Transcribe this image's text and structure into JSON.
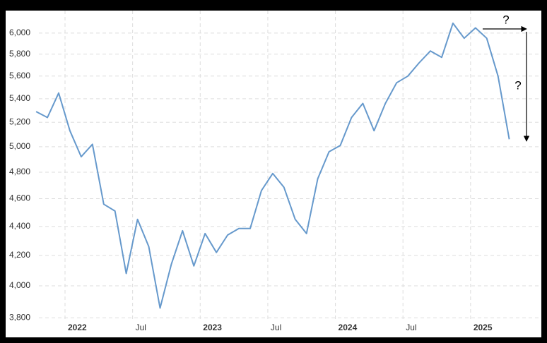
{
  "chart_data": {
    "type": "line",
    "x": [
      "2021-11",
      "2021-12",
      "2022-01",
      "2022-02",
      "2022-03",
      "2022-04",
      "2022-05",
      "2022-06",
      "2022-07",
      "2022-08",
      "2022-09",
      "2022-10",
      "2022-11",
      "2022-12",
      "2023-01",
      "2023-02",
      "2023-03",
      "2023-04",
      "2023-05",
      "2023-06",
      "2023-07",
      "2023-08",
      "2023-09",
      "2023-10",
      "2023-11",
      "2023-12",
      "2024-01",
      "2024-02",
      "2024-03",
      "2024-04",
      "2024-05",
      "2024-06",
      "2024-07",
      "2024-08",
      "2024-09",
      "2024-10",
      "2024-11",
      "2024-12",
      "2025-01",
      "2025-02",
      "2025-03",
      "2025-04",
      "2025-05"
    ],
    "series": [
      {
        "color": "#6699cc",
        "values": [
          5290,
          5240,
          5450,
          5130,
          4920,
          5020,
          4560,
          4510,
          4080,
          4450,
          4260,
          3860,
          4140,
          4370,
          4130,
          4350,
          4220,
          4340,
          4385,
          4385,
          4660,
          4790,
          4685,
          4450,
          4350,
          4750,
          4960,
          5010,
          5240,
          5360,
          5130,
          5360,
          5540,
          5600,
          5720,
          5830,
          5770,
          6095,
          5950,
          6050,
          5950,
          5600,
          5060
        ]
      }
    ],
    "ylim": [
      3780,
      6220
    ],
    "log_y": true,
    "yticks": [
      {
        "value": 3800,
        "label": "3,800"
      },
      {
        "value": 4000,
        "label": "4,000"
      },
      {
        "value": 4200,
        "label": "4,200"
      },
      {
        "value": 4400,
        "label": "4,400"
      },
      {
        "value": 4600,
        "label": "4,600"
      },
      {
        "value": 4800,
        "label": "4,800"
      },
      {
        "value": 5000,
        "label": "5,000"
      },
      {
        "value": 5200,
        "label": "5,200"
      },
      {
        "value": 5400,
        "label": "5,400"
      },
      {
        "value": 5600,
        "label": "5,600"
      },
      {
        "value": 5800,
        "label": "5,800"
      },
      {
        "value": 6000,
        "label": "6,000"
      }
    ],
    "xticks": [
      {
        "value": "2022-01",
        "label": "2022"
      },
      {
        "value": "2022-07",
        "label": "Jul"
      },
      {
        "value": "2023-01",
        "label": "2023"
      },
      {
        "value": "2023-07",
        "label": "Jul"
      },
      {
        "value": "2024-01",
        "label": "2024"
      },
      {
        "value": "2024-07",
        "label": "Jul"
      },
      {
        "value": "2025-01",
        "label": "2025"
      }
    ],
    "grid": true,
    "annotations": [
      "?",
      "?"
    ]
  }
}
